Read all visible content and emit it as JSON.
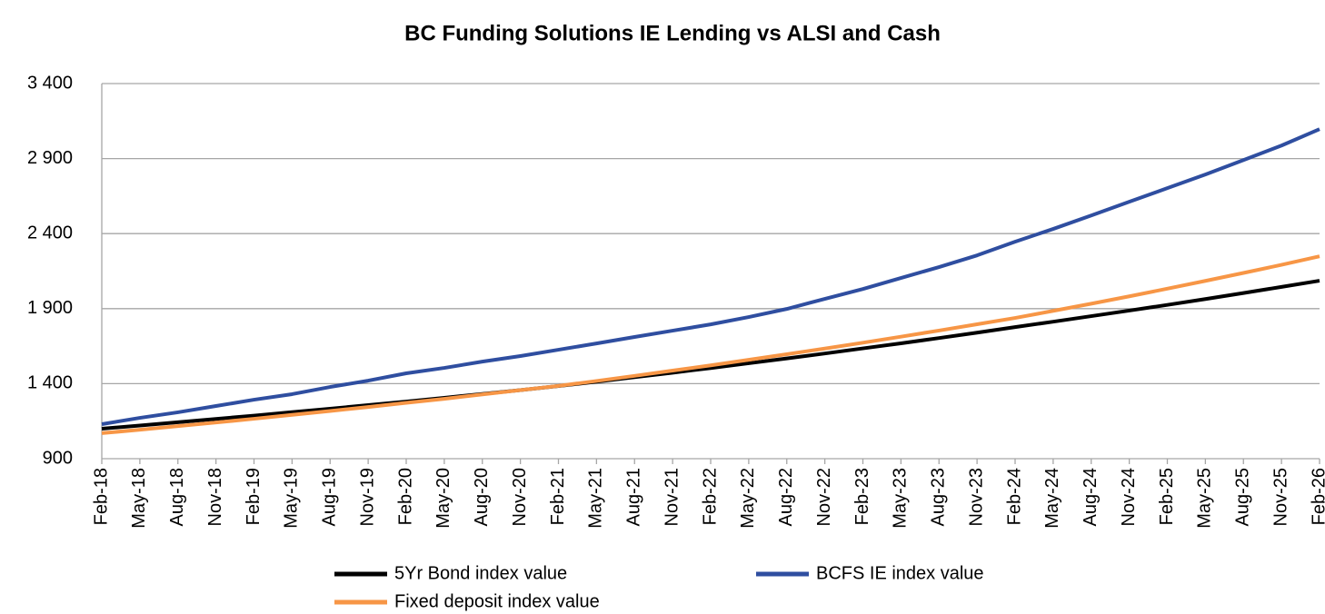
{
  "chart_data": {
    "type": "line",
    "title": "BC Funding Solutions IE Lending vs ALSI and Cash",
    "categories": [
      "Feb-18",
      "May-18",
      "Aug-18",
      "Nov-18",
      "Feb-19",
      "May-19",
      "Aug-19",
      "Nov-19",
      "Feb-20",
      "May-20",
      "Aug-20",
      "Nov-20",
      "Feb-21",
      "May-21",
      "Aug-21",
      "Nov-21",
      "Feb-22",
      "May-22",
      "Aug-22",
      "Nov-22",
      "Feb-23",
      "May-23",
      "Aug-23",
      "Nov-23",
      "Feb-24",
      "May-24",
      "Aug-24",
      "Nov-24",
      "Feb-25",
      "May-25",
      "Aug-25",
      "Nov-25",
      "Feb-26"
    ],
    "series": [
      {
        "name": "5Yr Bond index value",
        "color": "#000000",
        "values": [
          1100,
          1121,
          1143,
          1165,
          1187,
          1210,
          1233,
          1257,
          1281,
          1306,
          1331,
          1357,
          1384,
          1413,
          1443,
          1473,
          1504,
          1536,
          1568,
          1601,
          1635,
          1669,
          1704,
          1740,
          1777,
          1813,
          1850,
          1887,
          1925,
          1964,
          2004,
          2045,
          2086
        ]
      },
      {
        "name": "BCFS IE index value",
        "color": "#2f4ea0",
        "values": [
          1130,
          1172,
          1209,
          1251,
          1293,
          1330,
          1378,
          1420,
          1469,
          1505,
          1547,
          1584,
          1626,
          1668,
          1711,
          1753,
          1795,
          1844,
          1898,
          1965,
          2031,
          2104,
          2177,
          2255,
          2346,
          2431,
          2521,
          2612,
          2703,
          2794,
          2890,
          2987,
          3096
        ]
      },
      {
        "name": "Fixed deposit index value",
        "color": "#f79646",
        "values": [
          1070,
          1093,
          1117,
          1141,
          1166,
          1192,
          1218,
          1244,
          1272,
          1299,
          1328,
          1357,
          1385,
          1418,
          1452,
          1487,
          1522,
          1559,
          1596,
          1634,
          1673,
          1713,
          1754,
          1796,
          1838,
          1885,
          1933,
          1982,
          2033,
          2085,
          2138,
          2192,
          2249
        ]
      }
    ],
    "ylim": [
      900,
      3400
    ],
    "yticks": [
      900,
      {
        "value": 1400,
        "label": "1 400"
      },
      {
        "value": 1900,
        "label": "1 900"
      },
      {
        "value": 2400,
        "label": "2 400"
      },
      {
        "value": 2900,
        "label": "2 900"
      },
      {
        "value": 3400,
        "label": "3 400"
      }
    ],
    "grid": true,
    "legend": "bottom"
  }
}
